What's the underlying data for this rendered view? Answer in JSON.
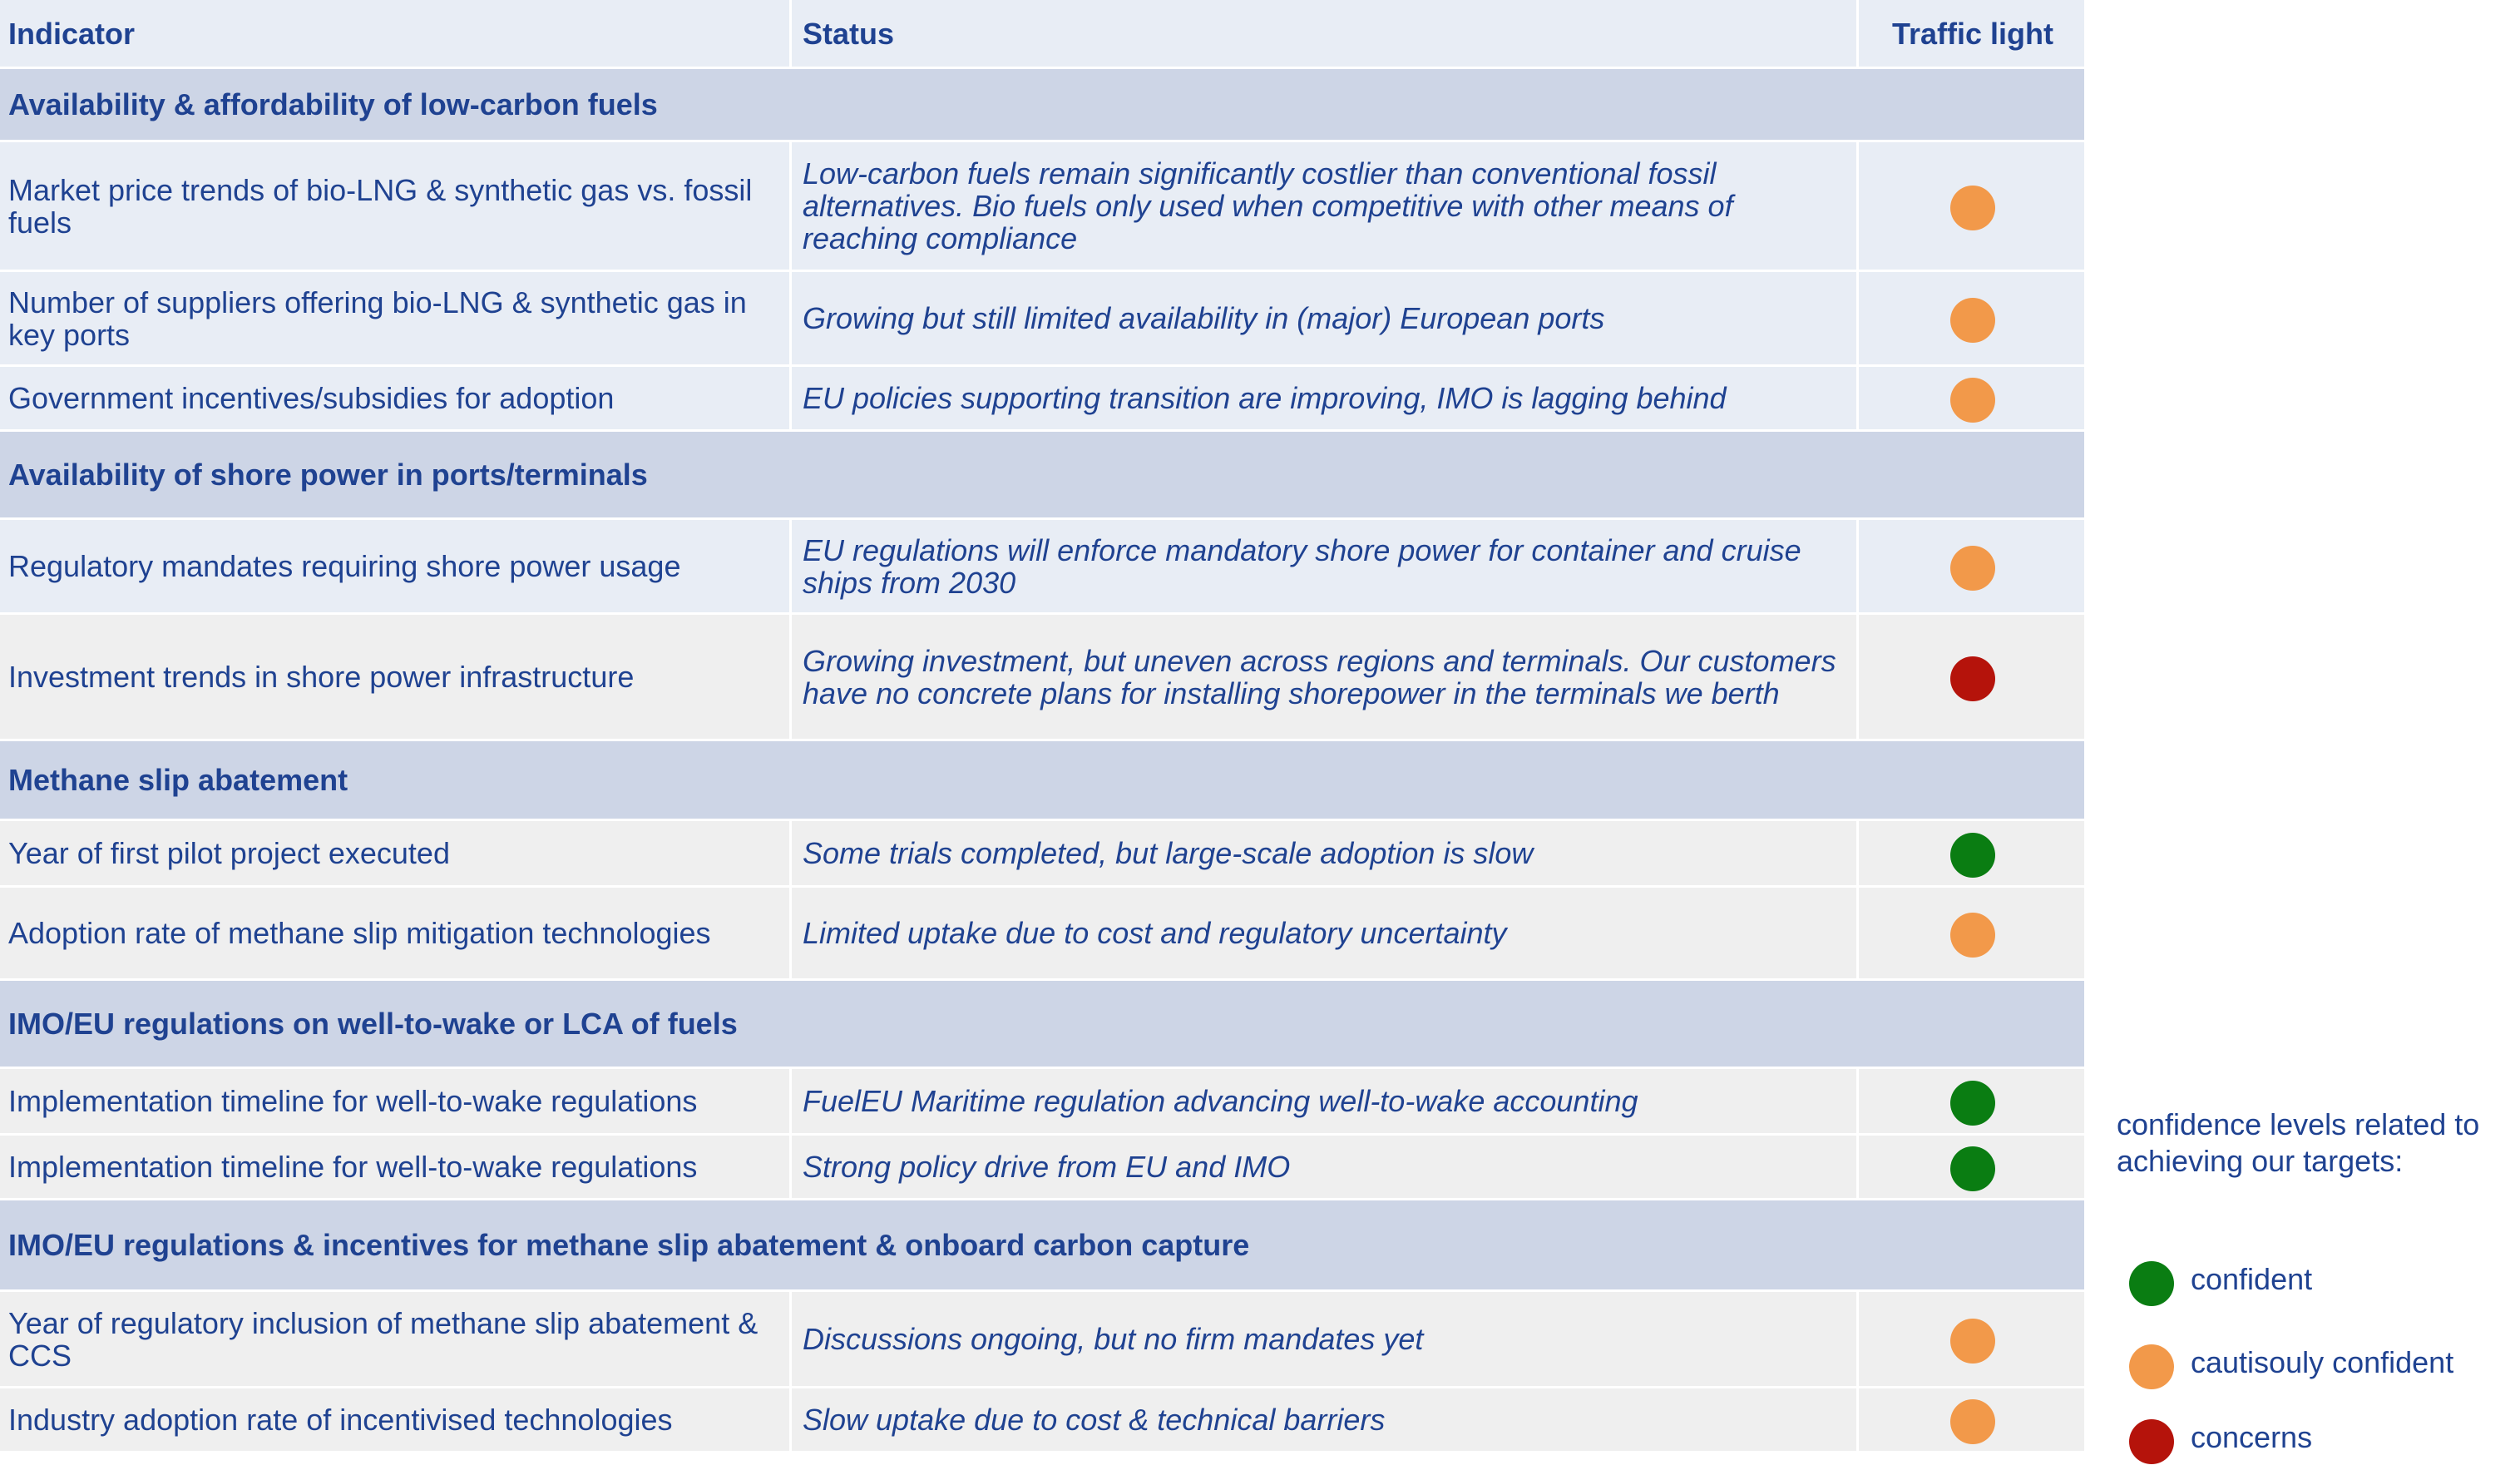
{
  "colors": {
    "header_bg": "#e8edf5",
    "section_bg": "#cdd5e6",
    "row_bg": "#e8edf5",
    "row_bg_alt": "#efefef",
    "text": "#1f4291",
    "orange": "#f2994a",
    "green": "#0a7d12",
    "red": "#b5130b"
  },
  "header": {
    "indicator": "Indicator",
    "status": "Status",
    "traffic_light": "Traffic light"
  },
  "sections": [
    {
      "title": "Availability & affordability of low-carbon fuels",
      "rows": [
        {
          "indicator": "Market price trends of bio-LNG & synthetic gas vs. fossil fuels",
          "status": "Low-carbon fuels remain significantly costlier than conventional fossil alternatives. Bio fuels only used when competitive with other means of reaching compliance",
          "light": "orange"
        },
        {
          "indicator": "Number of suppliers offering bio-LNG & synthetic gas in key ports",
          "status": "Growing but still limited availability in (major) European ports",
          "light": "orange"
        },
        {
          "indicator": "Government incentives/subsidies for adoption",
          "status": "EU policies supporting transition are improving, IMO is lagging behind",
          "light": "orange"
        }
      ]
    },
    {
      "title": "Availability of shore power in ports/terminals",
      "rows": [
        {
          "indicator": "Regulatory mandates requiring shore power usage",
          "status": "EU regulations will enforce mandatory shore power for container and cruise ships from 2030",
          "light": "orange"
        },
        {
          "indicator": "Investment trends in shore power infrastructure",
          "status": "Growing investment, but uneven across regions and terminals. Our customers have no concrete plans for installing shorepower in the terminals we berth",
          "light": "red"
        }
      ]
    },
    {
      "title": "Methane slip abatement",
      "rows": [
        {
          "indicator": "Year of first pilot project executed",
          "status": "Some trials completed, but large-scale adoption is slow",
          "light": "green"
        },
        {
          "indicator": "Adoption rate of methane slip mitigation technologies",
          "status": "Limited uptake due to cost and regulatory uncertainty",
          "light": "orange"
        }
      ]
    },
    {
      "title": "IMO/EU regulations on well-to-wake or LCA of fuels",
      "rows": [
        {
          "indicator": "Implementation timeline for well-to-wake regulations",
          "status": "FuelEU Maritime regulation advancing well-to-wake accounting",
          "light": "green"
        },
        {
          "indicator": "Implementation timeline for well-to-wake regulations",
          "status": "Strong policy drive from EU and IMO",
          "light": "green"
        }
      ]
    },
    {
      "title": "IMO/EU regulations & incentives for methane slip abatement & onboard carbon capture",
      "rows": [
        {
          "indicator": "Year of regulatory inclusion of methane slip abatement & CCS",
          "status": "Discussions ongoing, but no firm mandates yet",
          "light": "orange"
        },
        {
          "indicator": "Industry adoption rate of incentivised technologies",
          "status": "Slow uptake due to cost & technical barriers",
          "light": "orange"
        }
      ]
    }
  ],
  "legend": {
    "title": "confidence levels related to achieving our targets:",
    "items": [
      {
        "label": "confident",
        "light": "green"
      },
      {
        "label": "cautisouly confident",
        "light": "orange"
      },
      {
        "label": "concerns",
        "light": "red"
      }
    ]
  }
}
